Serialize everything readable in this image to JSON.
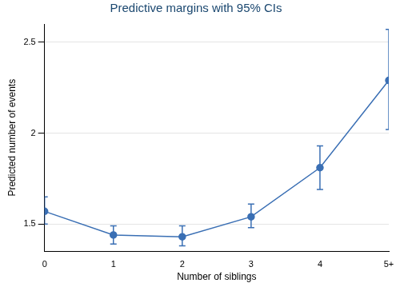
{
  "chart_data": {
    "type": "line",
    "title": "Predictive margins with 95% CIs",
    "x_label": "Number of siblings",
    "y_label": "Predicted number of events",
    "categories": [
      "0",
      "1",
      "2",
      "3",
      "4",
      "5+"
    ],
    "values": [
      1.57,
      1.44,
      1.43,
      1.54,
      1.81,
      2.29
    ],
    "ci_lower": [
      1.5,
      1.39,
      1.38,
      1.48,
      1.69,
      2.02
    ],
    "ci_upper": [
      1.65,
      1.49,
      1.49,
      1.61,
      1.93,
      2.57
    ],
    "color": "#3a6fb4",
    "marker": "circle",
    "ylim": [
      1.35,
      2.6
    ],
    "yticks": [
      1.5,
      2,
      2.5
    ],
    "grid": true
  }
}
